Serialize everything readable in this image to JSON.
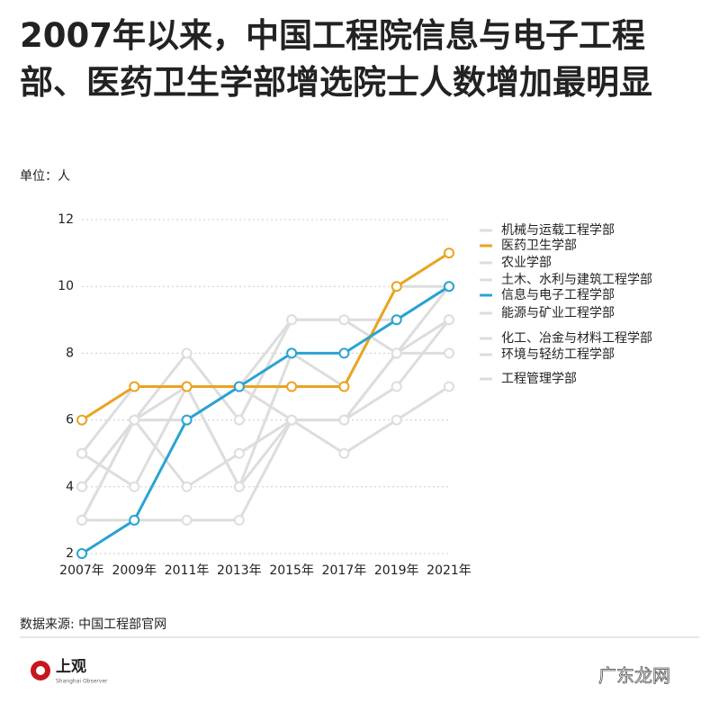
{
  "chart_data": {
    "type": "line",
    "title": "2007年以来，中国工程院信息与电子工程部、医药卫生学部增选院士人数增加最明显",
    "subtitle": "单位：人",
    "categories": [
      "2007年",
      "2009年",
      "2011年",
      "2013年",
      "2015年",
      "2017年",
      "2019年",
      "2021年"
    ],
    "series": [
      {
        "name": "机械与运载工程学部",
        "color": "#dddddd",
        "values": [
          5,
          7,
          7,
          7,
          9,
          9,
          9,
          10
        ]
      },
      {
        "name": "医药卫生学部",
        "color": "#e9a420",
        "values": [
          6,
          7,
          7,
          7,
          7,
          7,
          10,
          11
        ]
      },
      {
        "name": "农业学部",
        "color": "#dddddd",
        "values": [
          4,
          6,
          8,
          6,
          9,
          9,
          8,
          10
        ]
      },
      {
        "name": "土木、水利与建筑工程学部",
        "color": "#dddddd",
        "values": [
          3,
          6,
          7,
          4,
          8,
          7,
          10,
          10
        ]
      },
      {
        "name": "信息与电子工程学部",
        "color": "#2aa3d3",
        "values": [
          2,
          3,
          6,
          7,
          8,
          8,
          9,
          10
        ]
      },
      {
        "name": "能源与矿业工程学部",
        "color": "#dddddd",
        "values": [
          5,
          4,
          7,
          4,
          6,
          6,
          7,
          9
        ]
      },
      {
        "name": "化工、冶金与材料工程学部",
        "color": "#dddddd",
        "values": [
          3,
          6,
          4,
          5,
          6,
          6,
          8,
          9
        ]
      },
      {
        "name": "环境与轻纺工程学部",
        "color": "#dddddd",
        "values": [
          4,
          6,
          6,
          7,
          6,
          6,
          8,
          8
        ]
      },
      {
        "name": "工程管理学部",
        "color": "#dddddd",
        "values": [
          3,
          3,
          3,
          3,
          6,
          5,
          6,
          7
        ]
      }
    ],
    "ylim": [
      2,
      12
    ],
    "yticks": [
      2,
      4,
      6,
      8,
      10,
      12
    ],
    "grid": true,
    "source": "数据来源: 中国工程部官网",
    "logo": "上观",
    "logo_sub": "Shanghai Observer",
    "watermark": "广东龙网"
  }
}
